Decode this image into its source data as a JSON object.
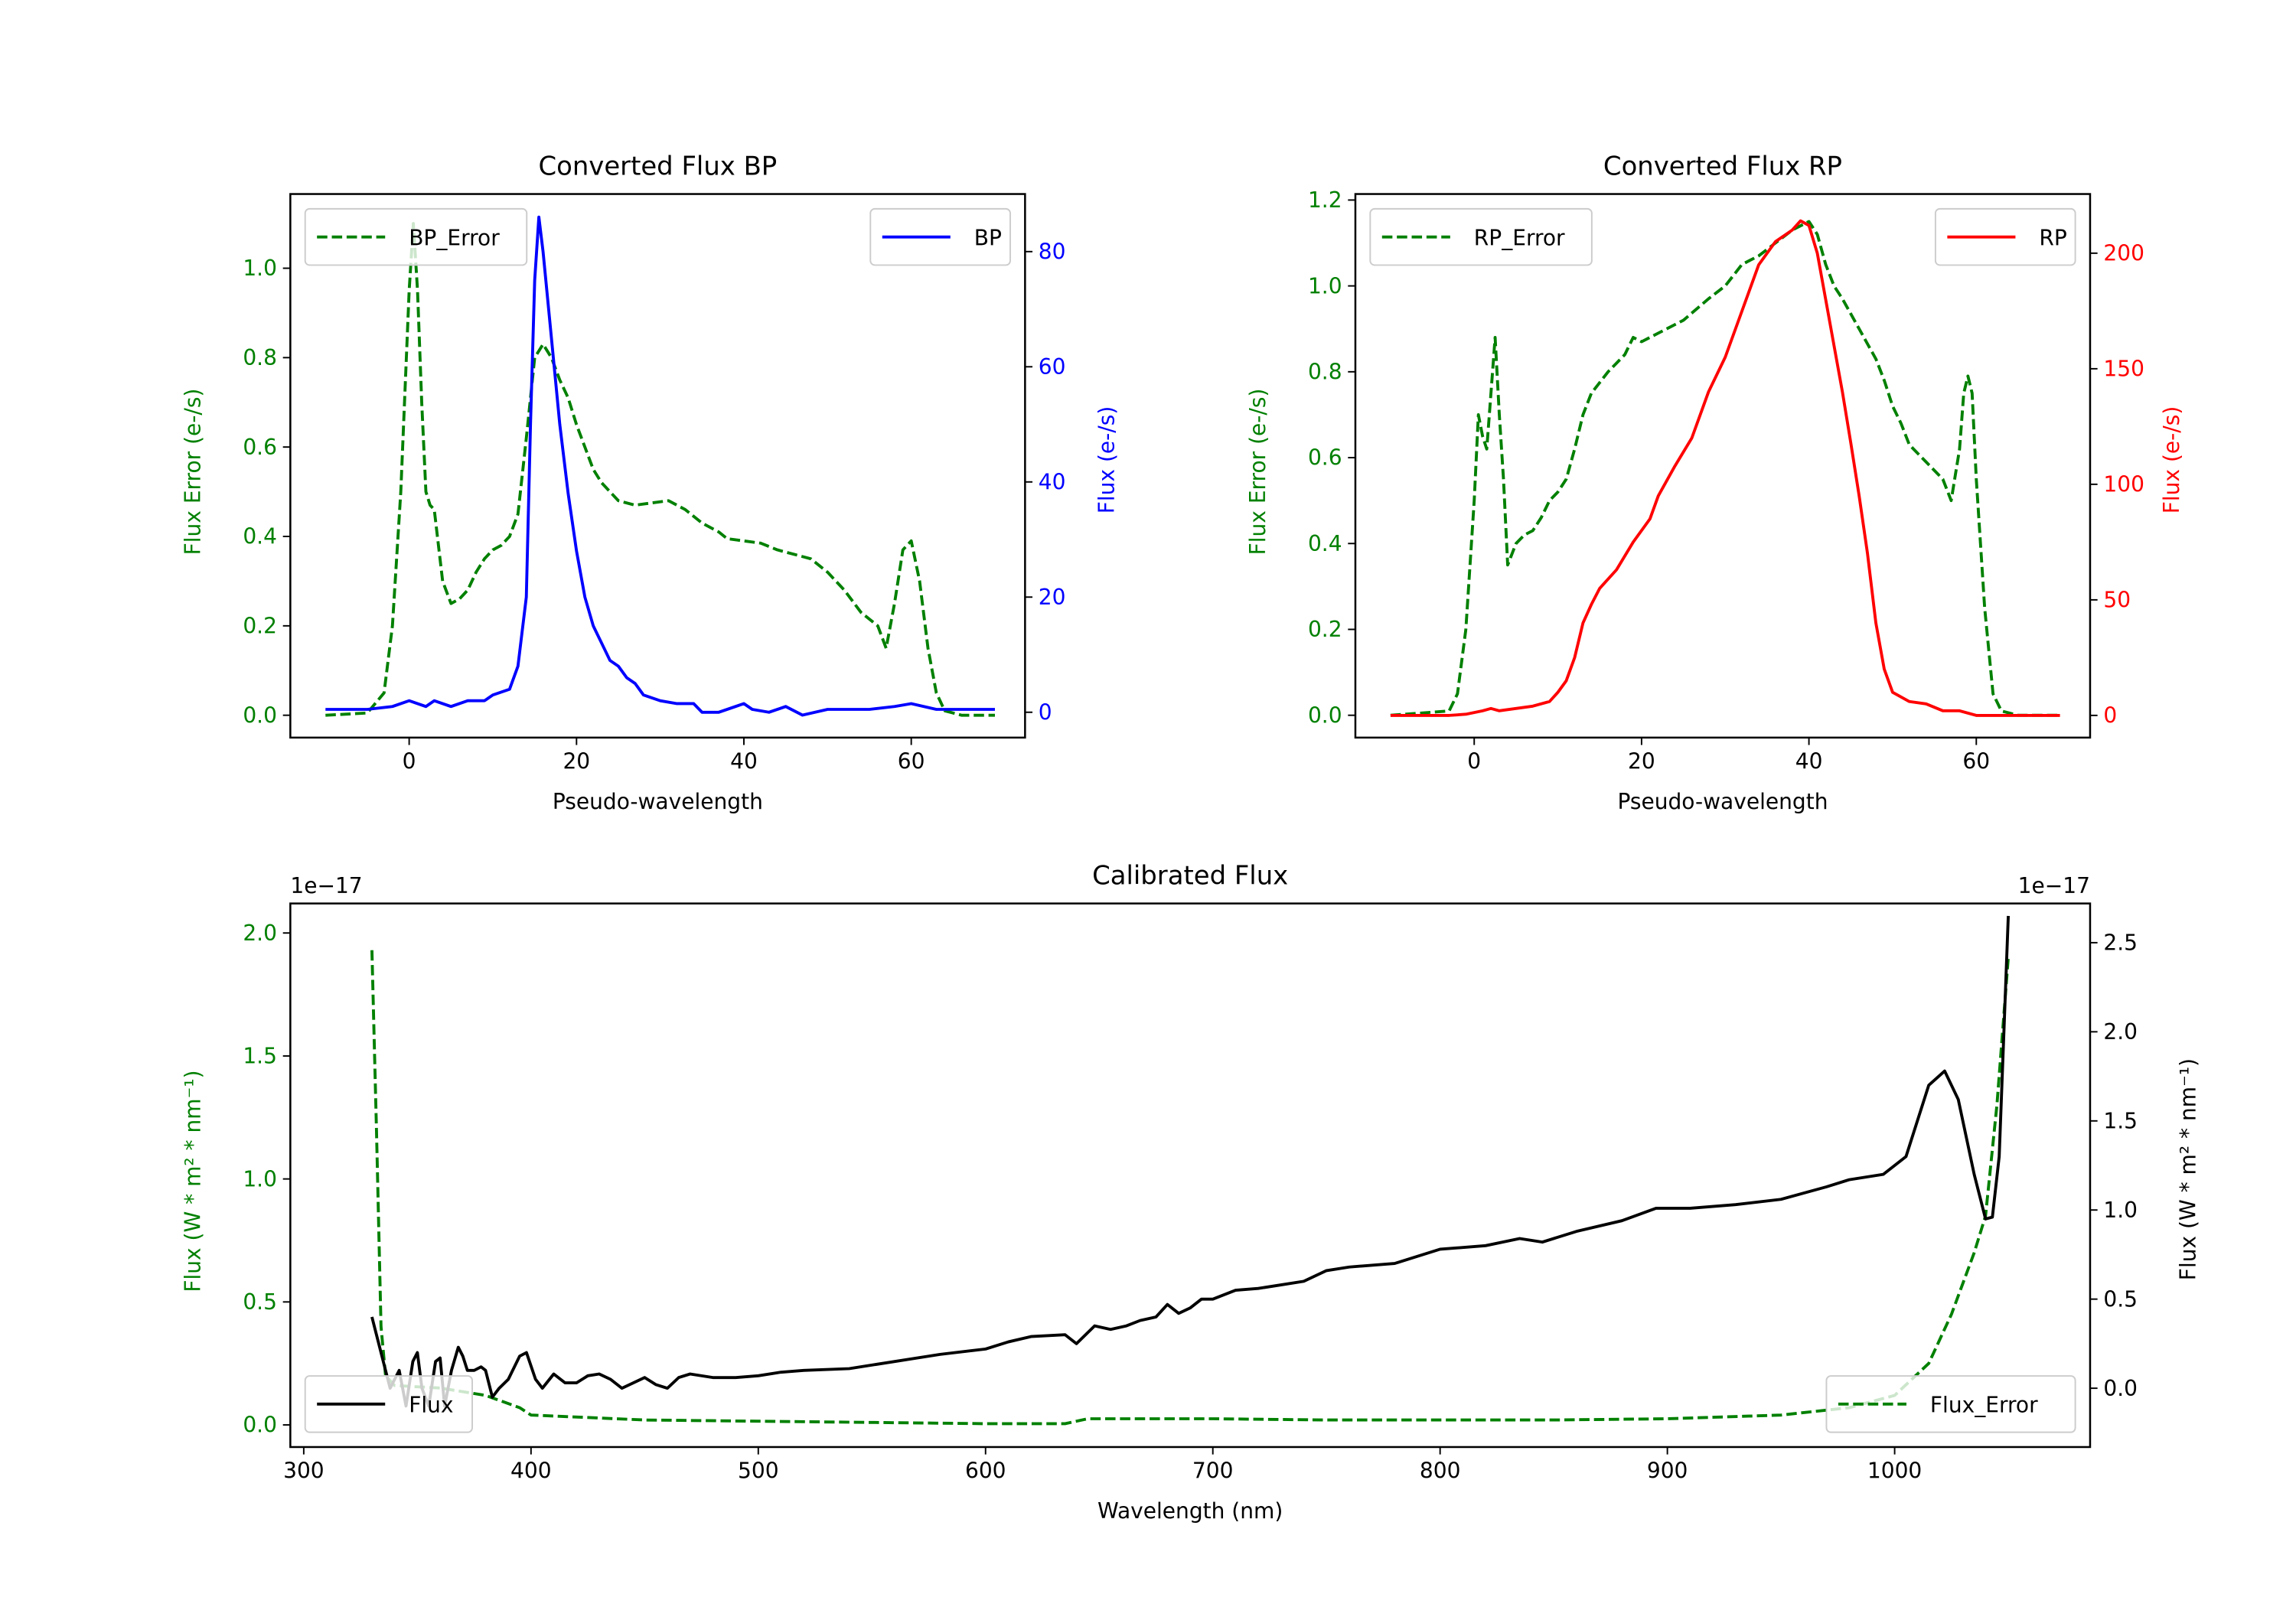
{
  "chart_data": [
    {
      "type": "line",
      "title": "Converted Flux BP",
      "xlabel": "Pseudo-wavelength",
      "ylabel": "Flux Error (e-/s)",
      "ylabel2": "Flux (e-/s)",
      "xlim": [
        -14.2,
        73.6
      ],
      "ylim": [
        -0.05,
        1.166
      ],
      "ylim2": [
        -4.4,
        90
      ],
      "xticks": [
        0,
        20,
        40,
        60
      ],
      "yticks": [
        0.0,
        0.2,
        0.4,
        0.6,
        0.8,
        1.0
      ],
      "yticks2": [
        0,
        20,
        40,
        60,
        80
      ],
      "left_color": "#008000",
      "right_color": "#0000ff",
      "series": [
        {
          "name": "BP_Error",
          "axis": "left",
          "style": "dashed",
          "color": "#008000",
          "legend": "upper-left",
          "x": [
            -10,
            -5,
            -3,
            -2,
            -1,
            0,
            0.5,
            1,
            1.5,
            2,
            2.5,
            3,
            4,
            5,
            6,
            7,
            8,
            9,
            10,
            11,
            12,
            13,
            14,
            15,
            16,
            17,
            18,
            19,
            20,
            21,
            22,
            23,
            24,
            25,
            27,
            29,
            31,
            33,
            35,
            37,
            38,
            40,
            42,
            44,
            46,
            48,
            50,
            52,
            54,
            56,
            57,
            58,
            59,
            60,
            61,
            62,
            63,
            64,
            66,
            70
          ],
          "y": [
            0,
            0.005,
            0.05,
            0.2,
            0.5,
            0.95,
            1.1,
            0.95,
            0.7,
            0.5,
            0.47,
            0.46,
            0.3,
            0.25,
            0.26,
            0.28,
            0.32,
            0.35,
            0.37,
            0.38,
            0.4,
            0.45,
            0.62,
            0.8,
            0.83,
            0.8,
            0.75,
            0.71,
            0.65,
            0.6,
            0.55,
            0.52,
            0.5,
            0.48,
            0.47,
            0.475,
            0.48,
            0.46,
            0.43,
            0.41,
            0.395,
            0.39,
            0.385,
            0.37,
            0.36,
            0.35,
            0.32,
            0.28,
            0.23,
            0.2,
            0.15,
            0.25,
            0.37,
            0.39,
            0.3,
            0.15,
            0.05,
            0.01,
            0,
            0
          ]
        },
        {
          "name": "BP",
          "axis": "right",
          "style": "solid",
          "color": "#0000ff",
          "legend": "upper-right",
          "x": [
            -10,
            -5,
            -2,
            0,
            2,
            3,
            5,
            7,
            9,
            10,
            12,
            13,
            14,
            14.5,
            15,
            15.5,
            16,
            17,
            18,
            19,
            20,
            21,
            22,
            23,
            24,
            25,
            26,
            27,
            28,
            30,
            32,
            34,
            35,
            37,
            39,
            40,
            41,
            43,
            45,
            47,
            50,
            55,
            58,
            60,
            63,
            70
          ],
          "y": [
            0.5,
            0.5,
            1,
            2,
            1,
            2,
            1,
            2,
            2,
            3,
            4,
            8,
            20,
            50,
            75,
            86,
            80,
            65,
            50,
            38,
            28,
            20,
            15,
            12,
            9,
            8,
            6,
            5,
            3,
            2,
            1.5,
            1.5,
            0,
            0,
            1,
            1.5,
            0.5,
            0,
            1,
            -0.5,
            0.5,
            0.5,
            1,
            1.5,
            0.5,
            0.5
          ]
        }
      ]
    },
    {
      "type": "line",
      "title": "Converted Flux RP",
      "xlabel": "Pseudo-wavelength",
      "ylabel": "Flux Error (e-/s)",
      "ylabel2": "Flux (e-/s)",
      "xlim": [
        -14.2,
        73.6
      ],
      "ylim": [
        -0.052,
        1.214
      ],
      "ylim2": [
        -9.6,
        225.6
      ],
      "xticks": [
        0,
        20,
        40,
        60
      ],
      "yticks": [
        0.0,
        0.2,
        0.4,
        0.6,
        0.8,
        1.0,
        1.2
      ],
      "yticks2": [
        0,
        50,
        100,
        150,
        200
      ],
      "left_color": "#008000",
      "right_color": "#ff0000",
      "series": [
        {
          "name": "RP_Error",
          "axis": "left",
          "style": "dashed",
          "color": "#008000",
          "legend": "upper-left",
          "x": [
            -10,
            -3,
            -2,
            -1,
            0,
            0.5,
            1,
            1.5,
            2,
            2.5,
            3,
            3.5,
            4,
            5,
            6,
            7,
            8,
            9,
            10,
            11,
            12,
            13,
            14,
            16,
            18,
            19,
            20,
            22,
            25,
            28,
            30,
            32,
            34,
            36,
            38,
            40,
            41,
            42,
            43,
            44,
            46,
            48,
            49,
            50,
            51,
            52,
            53,
            54,
            55,
            56,
            57,
            58,
            58.5,
            59,
            59.5,
            60,
            61,
            62,
            63,
            65,
            70
          ],
          "y": [
            0,
            0.01,
            0.05,
            0.2,
            0.5,
            0.7,
            0.65,
            0.62,
            0.75,
            0.88,
            0.7,
            0.55,
            0.35,
            0.4,
            0.42,
            0.43,
            0.46,
            0.5,
            0.52,
            0.55,
            0.62,
            0.7,
            0.75,
            0.8,
            0.84,
            0.88,
            0.87,
            0.89,
            0.92,
            0.97,
            1.0,
            1.05,
            1.07,
            1.1,
            1.13,
            1.15,
            1.12,
            1.05,
            1.0,
            0.97,
            0.9,
            0.83,
            0.78,
            0.72,
            0.68,
            0.63,
            0.61,
            0.59,
            0.57,
            0.55,
            0.5,
            0.62,
            0.75,
            0.79,
            0.75,
            0.55,
            0.25,
            0.05,
            0.01,
            0,
            0
          ]
        },
        {
          "name": "RP",
          "axis": "right",
          "style": "solid",
          "color": "#ff0000",
          "legend": "upper-right",
          "x": [
            -10,
            -3,
            -1,
            1,
            2,
            3,
            5,
            7,
            9,
            10,
            11,
            12,
            13,
            14,
            15,
            17,
            19,
            21,
            22,
            24,
            26,
            28,
            30,
            32,
            33,
            34,
            35,
            36,
            38,
            39,
            40,
            41,
            42,
            43,
            44,
            45,
            46,
            47,
            48,
            49,
            50,
            52,
            54,
            56,
            58,
            60,
            65,
            70
          ],
          "y": [
            0,
            0,
            0.5,
            2,
            3,
            2,
            3,
            4,
            6,
            10,
            15,
            25,
            40,
            48,
            55,
            63,
            75,
            85,
            95,
            108,
            120,
            140,
            155,
            175,
            185,
            195,
            200,
            205,
            210,
            214,
            212,
            200,
            180,
            160,
            140,
            118,
            95,
            70,
            40,
            20,
            10,
            6,
            5,
            2,
            2,
            0,
            0,
            0
          ]
        }
      ]
    },
    {
      "type": "line",
      "title": "Calibrated Flux",
      "xlabel": "Wavelength (nm)",
      "ylabel": "Flux (W * m² * nm⁻¹)",
      "ylabel2": "Flux (W * m² * nm⁻¹)",
      "offset_label": "1e−17",
      "offset_label2": "1e−17",
      "xlim": [
        294.1,
        1086
      ],
      "ylim": [
        -0.09,
        2.12
      ],
      "ylim2": [
        -0.33,
        2.72
      ],
      "xticks": [
        300,
        400,
        500,
        600,
        700,
        800,
        900,
        1000
      ],
      "yticks": [
        0.0,
        0.5,
        1.0,
        1.5,
        2.0
      ],
      "yticks2": [
        0.0,
        0.5,
        1.0,
        1.5,
        2.0,
        2.5
      ],
      "left_color": "#008000",
      "right_color": "#000000",
      "series": [
        {
          "name": "Flux_Error",
          "axis": "left",
          "style": "dashed",
          "color": "#008000",
          "legend": "lower-right",
          "x": [
            330,
            332,
            334,
            336,
            340,
            360,
            380,
            395,
            400,
            450,
            500,
            550,
            600,
            635,
            645,
            700,
            750,
            800,
            850,
            900,
            950,
            980,
            1000,
            1015,
            1025,
            1035,
            1040,
            1045,
            1050
          ],
          "y": [
            1.93,
            1.2,
            0.4,
            0.2,
            0.16,
            0.15,
            0.12,
            0.07,
            0.04,
            0.02,
            0.015,
            0.01,
            0.005,
            0.005,
            0.025,
            0.025,
            0.02,
            0.02,
            0.02,
            0.025,
            0.04,
            0.07,
            0.12,
            0.25,
            0.45,
            0.7,
            0.85,
            1.3,
            1.9
          ]
        },
        {
          "name": "Flux",
          "axis": "right",
          "style": "solid",
          "color": "#000000",
          "legend": "lower-left",
          "x": [
            330,
            332,
            335,
            338,
            342,
            345,
            348,
            350,
            352,
            355,
            358,
            360,
            362,
            365,
            368,
            370,
            372,
            375,
            378,
            380,
            383,
            386,
            390,
            395,
            398,
            402,
            405,
            410,
            415,
            420,
            425,
            430,
            435,
            440,
            445,
            450,
            455,
            460,
            465,
            470,
            480,
            490,
            500,
            510,
            520,
            540,
            560,
            580,
            600,
            610,
            620,
            635,
            640,
            648,
            655,
            662,
            668,
            675,
            680,
            685,
            690,
            695,
            700,
            710,
            720,
            730,
            740,
            750,
            760,
            780,
            800,
            820,
            835,
            845,
            860,
            880,
            895,
            910,
            930,
            950,
            970,
            980,
            995,
            1005,
            1015,
            1022,
            1028,
            1035,
            1040,
            1043,
            1046,
            1050
          ],
          "y": [
            0.4,
            0.3,
            0.15,
            0.0,
            0.1,
            -0.1,
            0.15,
            0.2,
            0.0,
            -0.1,
            0.15,
            0.17,
            -0.1,
            0.1,
            0.23,
            0.18,
            0.1,
            0.1,
            0.12,
            0.1,
            -0.05,
            0.0,
            0.05,
            0.18,
            0.2,
            0.05,
            0.0,
            0.08,
            0.03,
            0.03,
            0.07,
            0.08,
            0.05,
            0.0,
            0.03,
            0.06,
            0.02,
            0.0,
            0.06,
            0.08,
            0.06,
            0.06,
            0.07,
            0.09,
            0.1,
            0.11,
            0.15,
            0.19,
            0.22,
            0.26,
            0.29,
            0.3,
            0.25,
            0.35,
            0.33,
            0.35,
            0.38,
            0.4,
            0.47,
            0.42,
            0.45,
            0.5,
            0.5,
            0.55,
            0.56,
            0.58,
            0.6,
            0.66,
            0.68,
            0.7,
            0.78,
            0.8,
            0.84,
            0.82,
            0.88,
            0.94,
            1.01,
            1.01,
            1.03,
            1.06,
            1.13,
            1.17,
            1.2,
            1.3,
            1.7,
            1.78,
            1.62,
            1.2,
            0.95,
            0.96,
            1.3,
            2.65
          ]
        }
      ]
    }
  ]
}
